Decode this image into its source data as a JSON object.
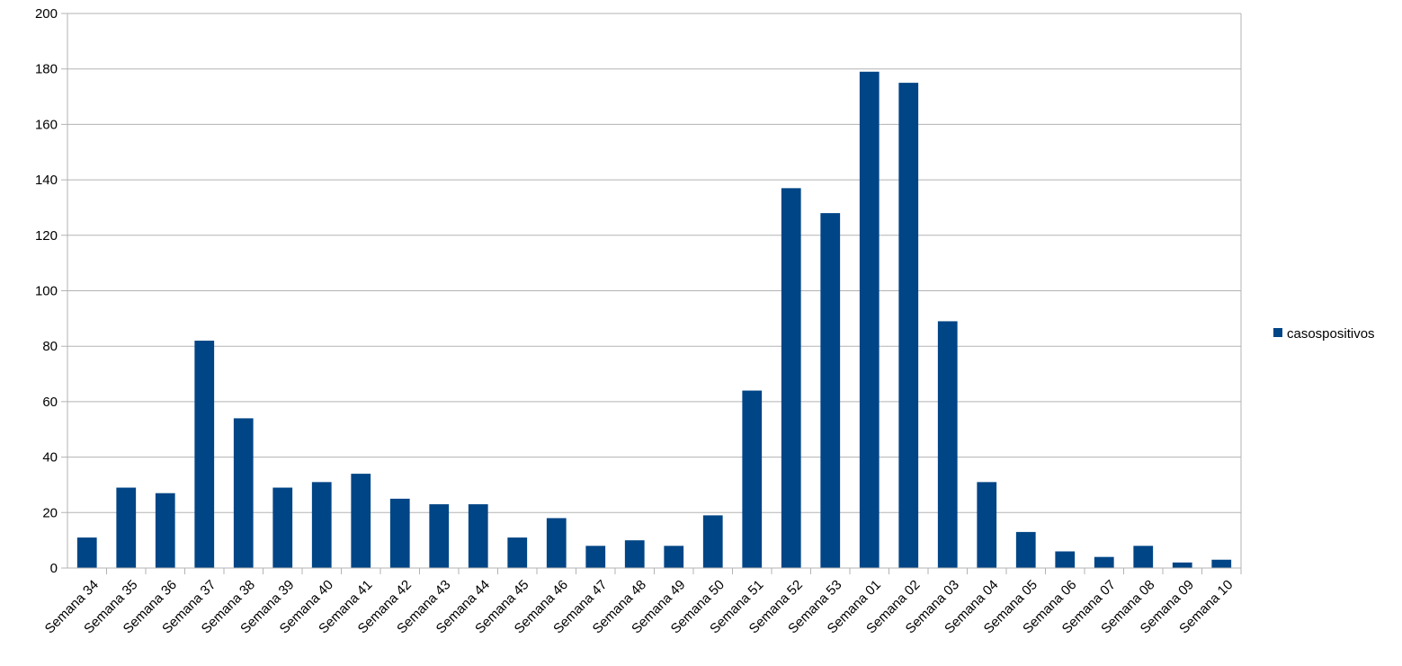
{
  "chart_data": {
    "type": "bar",
    "categories": [
      "Semana 34",
      "Semana 35",
      "Semana 36",
      "Semana 37",
      "Semana 38",
      "Semana 39",
      "Semana 40",
      "Semana 41",
      "Semana 42",
      "Semana 43",
      "Semana 44",
      "Semana 45",
      "Semana 46",
      "Semana 47",
      "Semana 48",
      "Semana 49",
      "Semana 50",
      "Semana 51",
      "Semana 52",
      "Semana 53",
      "Semana 01",
      "Semana 02",
      "Semana 03",
      "Semana 04",
      "Semana 05",
      "Semana 06",
      "Semana 07",
      "Semana 08",
      "Semana 09",
      "Semana 10"
    ],
    "series": [
      {
        "name": "casospositivos",
        "values": [
          11,
          29,
          27,
          82,
          54,
          29,
          31,
          34,
          25,
          23,
          23,
          11,
          18,
          8,
          10,
          8,
          19,
          64,
          137,
          128,
          179,
          175,
          89,
          31,
          13,
          6,
          4,
          8,
          2,
          3
        ]
      }
    ],
    "yticks": [
      "0",
      "20",
      "40",
      "60",
      "80",
      "100",
      "120",
      "140",
      "160",
      "180",
      "200"
    ],
    "ylim": [
      0,
      200
    ],
    "grid": true,
    "legend_position": "right",
    "colors": {
      "bar": "#004586",
      "grid": "#b3b3b3",
      "axis": "#b3b3b3"
    }
  }
}
